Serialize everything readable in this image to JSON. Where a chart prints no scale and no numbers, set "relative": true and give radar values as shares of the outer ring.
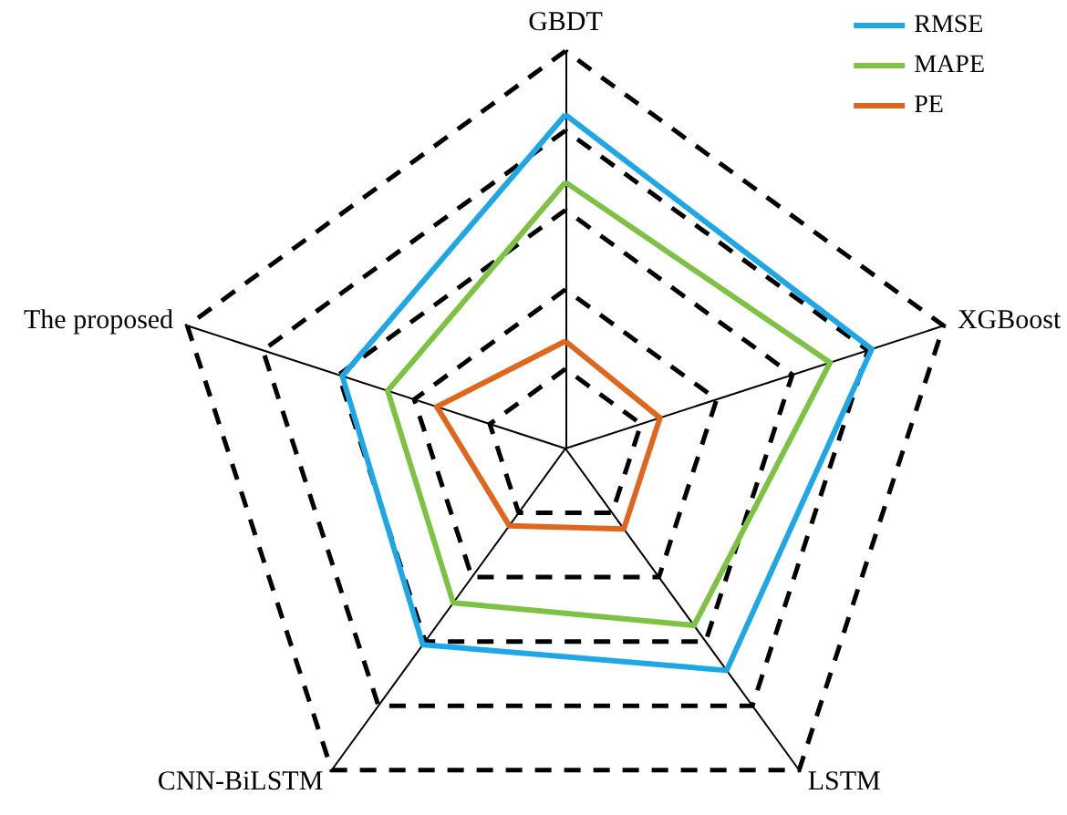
{
  "chart_data": {
    "type": "radar",
    "relative": true,
    "categories": [
      "GBDT",
      "XGBoost",
      "LSTM",
      "CNN-BiLSTM",
      "The proposed"
    ],
    "series": [
      {
        "name": "RMSE",
        "color": "#1ea7e6",
        "values": [
          0.84,
          0.81,
          0.69,
          0.61,
          0.59
        ]
      },
      {
        "name": "MAPE",
        "color": "#7dc242",
        "values": [
          0.67,
          0.7,
          0.55,
          0.48,
          0.47
        ]
      },
      {
        "name": "PE",
        "color": "#e0661c",
        "values": [
          0.27,
          0.25,
          0.25,
          0.24,
          0.34
        ]
      }
    ],
    "legend": "top right",
    "line_style": "solid",
    "marker": "none"
  }
}
